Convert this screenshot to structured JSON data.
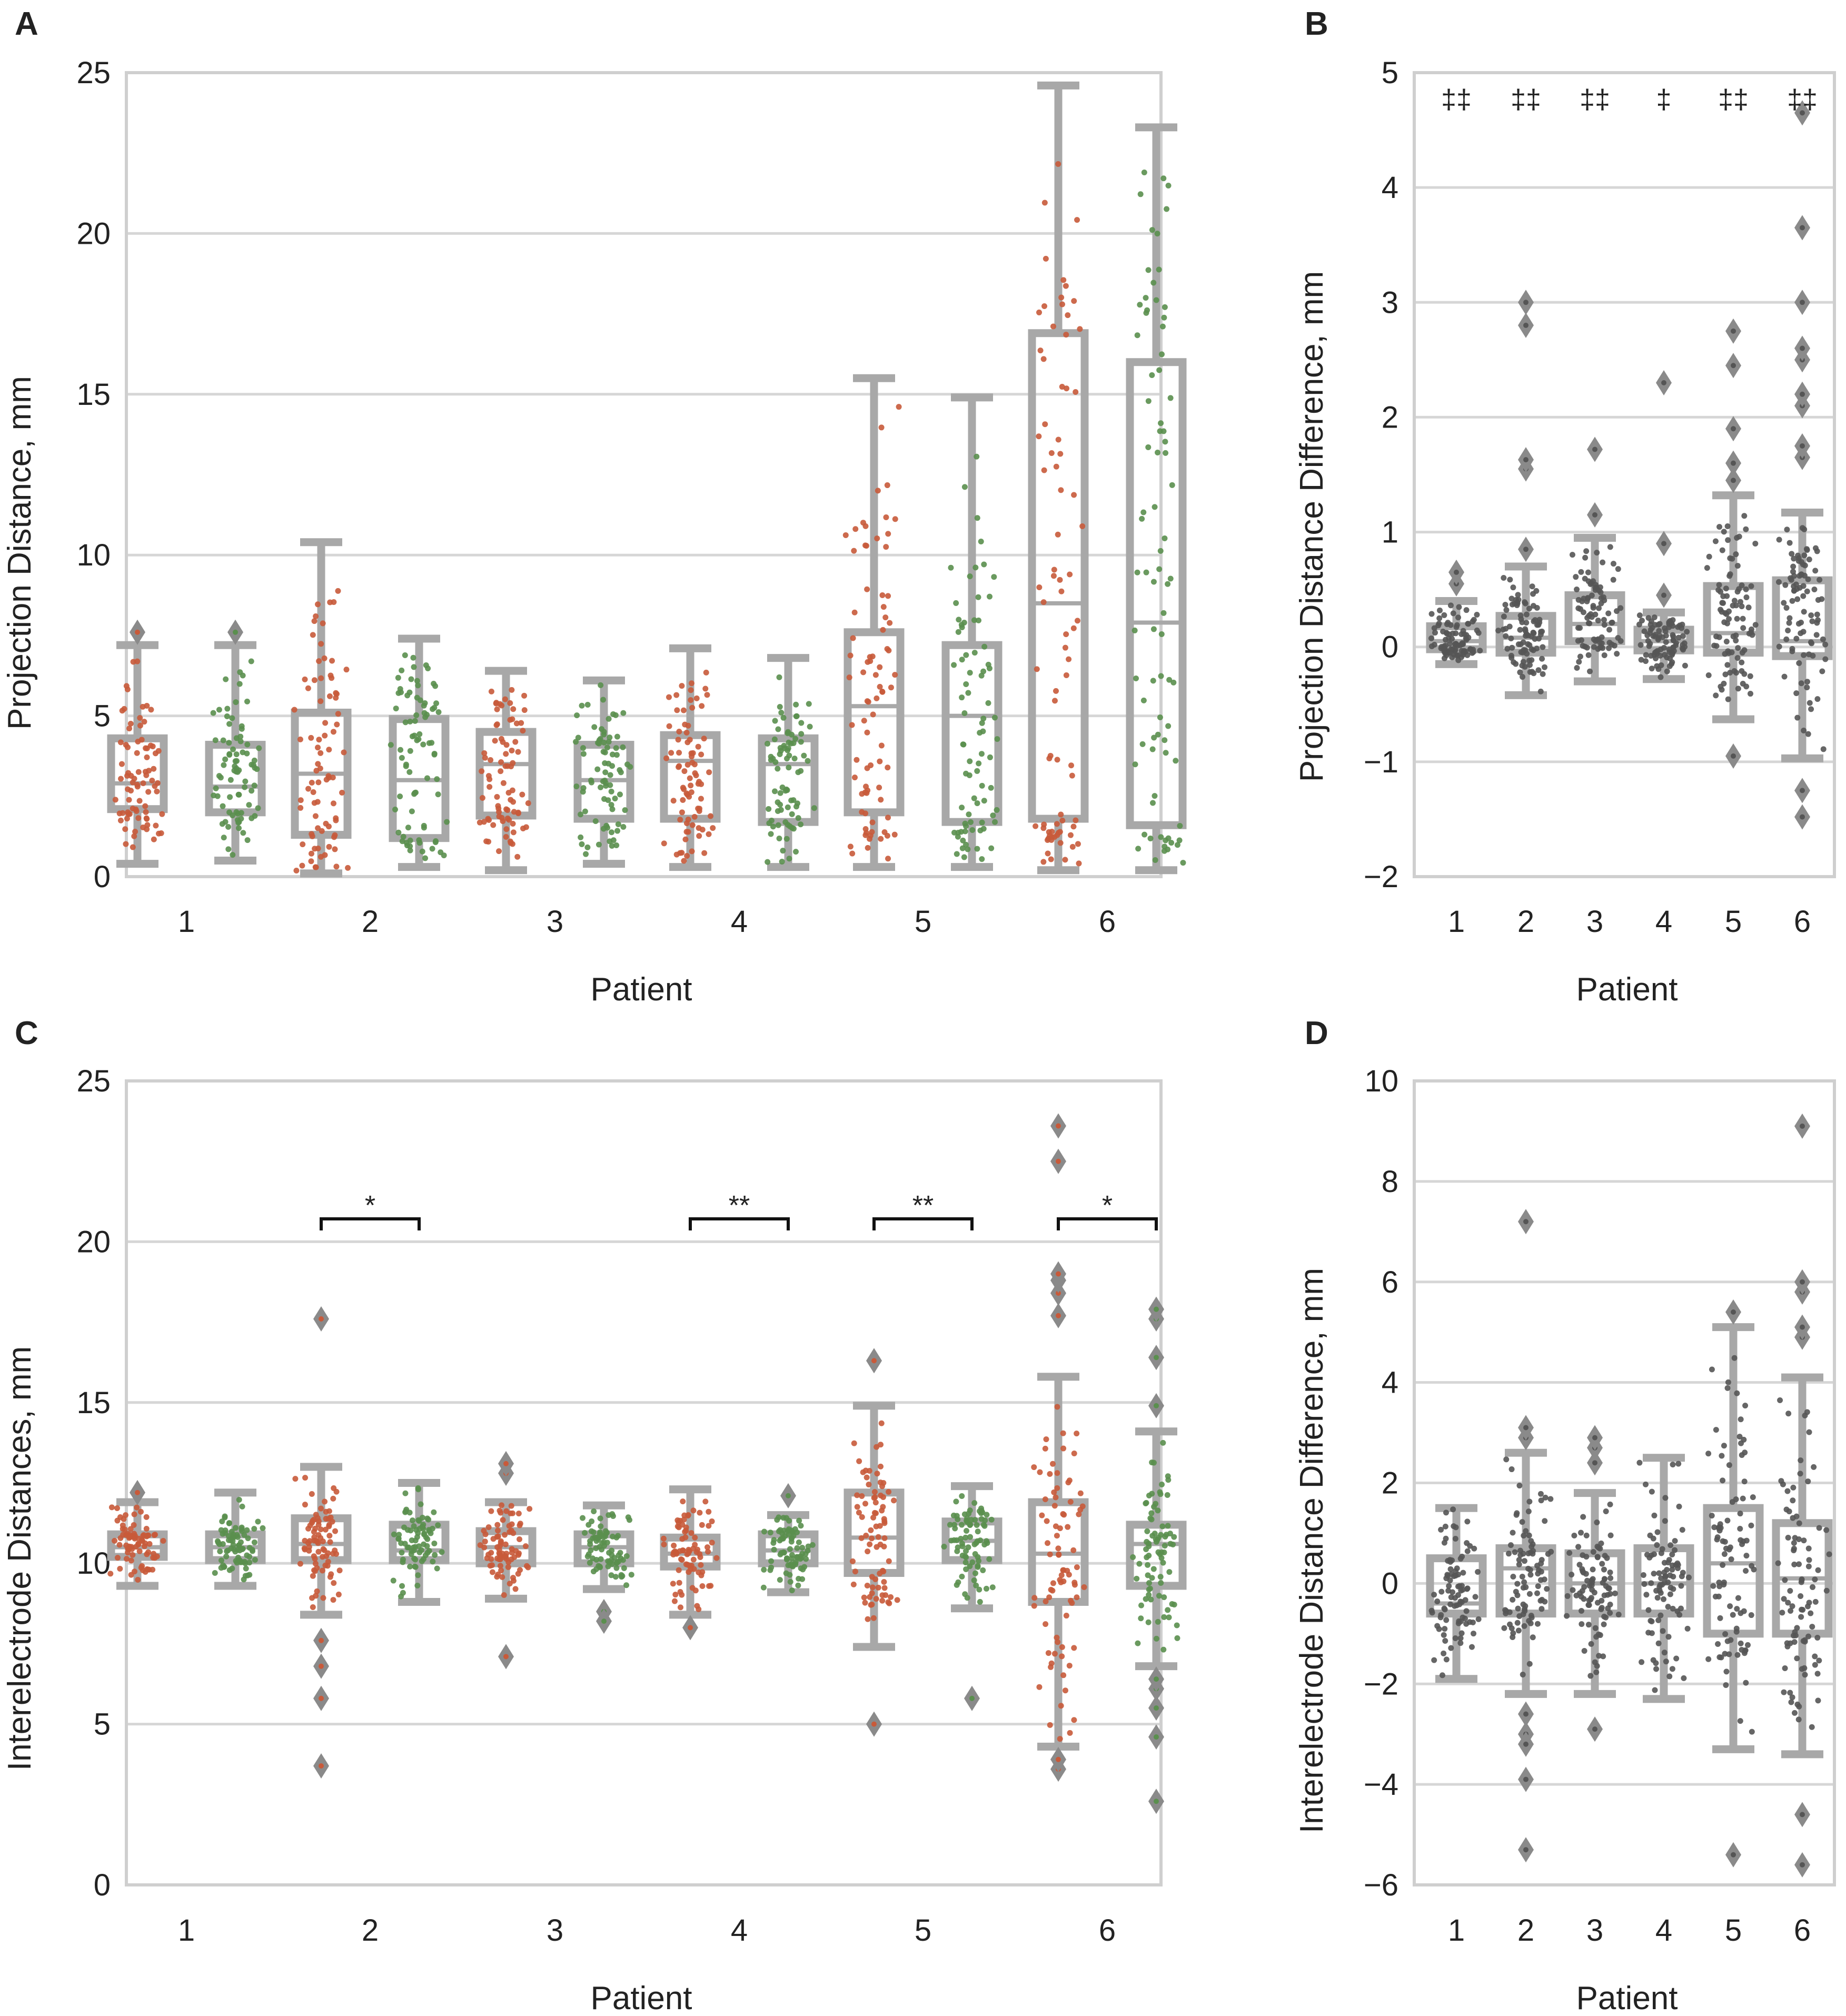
{
  "figure": {
    "panels": [
      "A",
      "B",
      "C",
      "D"
    ]
  },
  "colors": {
    "red": "#c85a3a",
    "green": "#5a8f4e",
    "gray": "#555555",
    "box": "#a8a8a8",
    "outlier": "#8a8a8a"
  },
  "chart_data": [
    {
      "panel": "A",
      "type": "box",
      "xlabel": "Patient",
      "ylabel": "Projection Distance, mm",
      "ylim": [
        0,
        25
      ],
      "yticks": [
        0,
        5,
        10,
        15,
        20,
        25
      ],
      "categories": [
        "1",
        "2",
        "3",
        "4",
        "5",
        "6"
      ],
      "series": [
        {
          "name": "red",
          "color": "#c85a3a",
          "boxes": [
            {
              "q1": 2.1,
              "med": 2.9,
              "q3": 4.3,
              "lo": 0.4,
              "hi": 7.2,
              "outliers": [
                7.6
              ]
            },
            {
              "q1": 1.3,
              "med": 3.2,
              "q3": 5.1,
              "lo": 0.1,
              "hi": 10.4,
              "outliers": []
            },
            {
              "q1": 1.9,
              "med": 3.5,
              "q3": 4.5,
              "lo": 0.2,
              "hi": 6.4,
              "outliers": []
            },
            {
              "q1": 1.8,
              "med": 3.6,
              "q3": 4.4,
              "lo": 0.3,
              "hi": 7.1,
              "outliers": []
            },
            {
              "q1": 2.0,
              "med": 5.3,
              "q3": 7.6,
              "lo": 0.3,
              "hi": 15.5,
              "outliers": []
            },
            {
              "q1": 1.8,
              "med": 8.5,
              "q3": 16.9,
              "lo": 0.2,
              "hi": 24.6,
              "outliers": []
            }
          ]
        },
        {
          "name": "green",
          "color": "#5a8f4e",
          "boxes": [
            {
              "q1": 2.0,
              "med": 2.8,
              "q3": 4.1,
              "lo": 0.5,
              "hi": 7.2,
              "outliers": [
                7.6
              ]
            },
            {
              "q1": 1.2,
              "med": 3.0,
              "q3": 4.9,
              "lo": 0.3,
              "hi": 7.4,
              "outliers": []
            },
            {
              "q1": 1.8,
              "med": 3.0,
              "q3": 4.1,
              "lo": 0.4,
              "hi": 6.1,
              "outliers": []
            },
            {
              "q1": 1.7,
              "med": 3.5,
              "q3": 4.3,
              "lo": 0.3,
              "hi": 6.8,
              "outliers": []
            },
            {
              "q1": 1.7,
              "med": 5.0,
              "q3": 7.2,
              "lo": 0.3,
              "hi": 14.9,
              "outliers": []
            },
            {
              "q1": 1.6,
              "med": 7.9,
              "q3": 16.0,
              "lo": 0.2,
              "hi": 23.3,
              "outliers": []
            }
          ]
        }
      ],
      "annotations": []
    },
    {
      "panel": "B",
      "type": "box",
      "xlabel": "Patient",
      "ylabel": "Projection Distance Difference, mm",
      "ylim": [
        -2,
        5
      ],
      "yticks": [
        -2,
        -1,
        0,
        1,
        2,
        3,
        4,
        5
      ],
      "categories": [
        "1",
        "2",
        "3",
        "4",
        "5",
        "6"
      ],
      "series": [
        {
          "name": "difference",
          "color": "#555555",
          "boxes": [
            {
              "q1": -0.02,
              "med": 0.05,
              "q3": 0.18,
              "lo": -0.15,
              "hi": 0.4,
              "outliers": [
                0.55,
                0.65
              ]
            },
            {
              "q1": -0.05,
              "med": 0.08,
              "q3": 0.27,
              "lo": -0.42,
              "hi": 0.7,
              "outliers": [
                0.85,
                1.55,
                1.63,
                2.8,
                3.0
              ]
            },
            {
              "q1": 0.05,
              "med": 0.2,
              "q3": 0.45,
              "lo": -0.3,
              "hi": 0.95,
              "outliers": [
                1.15,
                1.72
              ]
            },
            {
              "q1": -0.03,
              "med": 0.05,
              "q3": 0.15,
              "lo": -0.28,
              "hi": 0.3,
              "outliers": [
                0.45,
                0.9,
                2.3
              ]
            },
            {
              "q1": -0.05,
              "med": 0.12,
              "q3": 0.53,
              "lo": -0.63,
              "hi": 1.32,
              "outliers": [
                1.45,
                1.6,
                1.9,
                2.45,
                2.75,
                -0.95
              ]
            },
            {
              "q1": -0.08,
              "med": 0.05,
              "q3": 0.58,
              "lo": -0.97,
              "hi": 1.17,
              "outliers": [
                1.65,
                1.75,
                2.1,
                2.2,
                2.5,
                2.6,
                3.0,
                3.65,
                4.65,
                -1.25,
                -1.48
              ]
            }
          ]
        }
      ],
      "annotations": [
        {
          "x": "1",
          "text": "‡‡"
        },
        {
          "x": "2",
          "text": "‡‡"
        },
        {
          "x": "3",
          "text": "‡‡"
        },
        {
          "x": "4",
          "text": "‡"
        },
        {
          "x": "5",
          "text": "‡‡"
        },
        {
          "x": "6",
          "text": "‡‡"
        }
      ]
    },
    {
      "panel": "C",
      "type": "box",
      "xlabel": "Patient",
      "ylabel": "Interelectrode Distances, mm",
      "ylim": [
        0,
        25
      ],
      "yticks": [
        0,
        5,
        10,
        15,
        20,
        25
      ],
      "categories": [
        "1",
        "2",
        "3",
        "4",
        "5",
        "6"
      ],
      "series": [
        {
          "name": "red",
          "color": "#c85a3a",
          "boxes": [
            {
              "q1": 10.2,
              "med": 10.5,
              "q3": 10.9,
              "lo": 9.3,
              "hi": 11.9,
              "outliers": [
                12.2
              ]
            },
            {
              "q1": 10.1,
              "med": 10.6,
              "q3": 11.4,
              "lo": 8.4,
              "hi": 13.0,
              "outliers": [
                7.6,
                6.8,
                5.8,
                3.7,
                17.6
              ]
            },
            {
              "q1": 10.0,
              "med": 10.5,
              "q3": 11.0,
              "lo": 8.9,
              "hi": 11.9,
              "outliers": [
                12.8,
                13.1,
                7.1
              ]
            },
            {
              "q1": 9.9,
              "med": 10.3,
              "q3": 10.8,
              "lo": 8.4,
              "hi": 12.3,
              "outliers": [
                8.0
              ]
            },
            {
              "q1": 9.7,
              "med": 10.8,
              "q3": 12.2,
              "lo": 7.4,
              "hi": 14.9,
              "outliers": [
                5.0,
                16.3
              ]
            },
            {
              "q1": 8.8,
              "med": 10.3,
              "q3": 11.9,
              "lo": 4.3,
              "hi": 15.8,
              "outliers": [
                3.6,
                3.9,
                17.7,
                18.4,
                18.8,
                19.0,
                22.5,
                23.6
              ]
            }
          ]
        },
        {
          "name": "green",
          "color": "#5a8f4e",
          "boxes": [
            {
              "q1": 10.1,
              "med": 10.5,
              "q3": 10.9,
              "lo": 9.3,
              "hi": 12.2,
              "outliers": []
            },
            {
              "q1": 10.1,
              "med": 10.4,
              "q3": 11.2,
              "lo": 8.8,
              "hi": 12.5,
              "outliers": []
            },
            {
              "q1": 10.0,
              "med": 10.5,
              "q3": 10.9,
              "lo": 9.2,
              "hi": 11.8,
              "outliers": [
                8.5,
                8.2
              ]
            },
            {
              "q1": 10.0,
              "med": 10.4,
              "q3": 10.9,
              "lo": 9.1,
              "hi": 11.5,
              "outliers": [
                12.1
              ]
            },
            {
              "q1": 10.1,
              "med": 10.7,
              "q3": 11.3,
              "lo": 8.6,
              "hi": 12.4,
              "outliers": [
                5.8
              ]
            },
            {
              "q1": 9.3,
              "med": 10.6,
              "q3": 11.2,
              "lo": 6.8,
              "hi": 14.1,
              "outliers": [
                2.6,
                4.6,
                5.5,
                6.1,
                6.4,
                14.9,
                16.4,
                17.6,
                17.9
              ]
            }
          ]
        }
      ],
      "annotations": [
        {
          "x": "2",
          "text": "*"
        },
        {
          "x": "4",
          "text": "**"
        },
        {
          "x": "5",
          "text": "**"
        },
        {
          "x": "6",
          "text": "*"
        }
      ]
    },
    {
      "panel": "D",
      "type": "box",
      "xlabel": "Patient",
      "ylabel": "Interelectrode Distance Difference, mm",
      "ylim": [
        -6,
        10
      ],
      "yticks": [
        -6,
        -4,
        -2,
        0,
        2,
        4,
        6,
        8,
        10
      ],
      "categories": [
        "1",
        "2",
        "3",
        "4",
        "5",
        "6"
      ],
      "series": [
        {
          "name": "difference",
          "color": "#555555",
          "boxes": [
            {
              "q1": -0.6,
              "med": -0.4,
              "q3": 0.5,
              "lo": -1.9,
              "hi": 1.5,
              "outliers": []
            },
            {
              "q1": -0.6,
              "med": 0.3,
              "q3": 0.7,
              "lo": -2.2,
              "hi": 2.6,
              "outliers": [
                2.9,
                3.1,
                -2.6,
                -3.0,
                -3.2,
                -3.9,
                -5.3,
                7.2
              ]
            },
            {
              "q1": -0.6,
              "med": 0.0,
              "q3": 0.6,
              "lo": -2.2,
              "hi": 1.8,
              "outliers": [
                2.4,
                2.7,
                2.9,
                -2.9
              ]
            },
            {
              "q1": -0.6,
              "med": 0.0,
              "q3": 0.7,
              "lo": -2.3,
              "hi": 2.5,
              "outliers": []
            },
            {
              "q1": -1.0,
              "med": 0.4,
              "q3": 1.5,
              "lo": -3.3,
              "hi": 5.1,
              "outliers": [
                5.4,
                -5.4
              ]
            },
            {
              "q1": -1.0,
              "med": 0.1,
              "q3": 1.2,
              "lo": -3.4,
              "hi": 4.1,
              "outliers": [
                4.9,
                5.1,
                5.8,
                6.0,
                9.1,
                -4.6,
                -5.6
              ]
            }
          ]
        }
      ],
      "annotations": []
    }
  ]
}
